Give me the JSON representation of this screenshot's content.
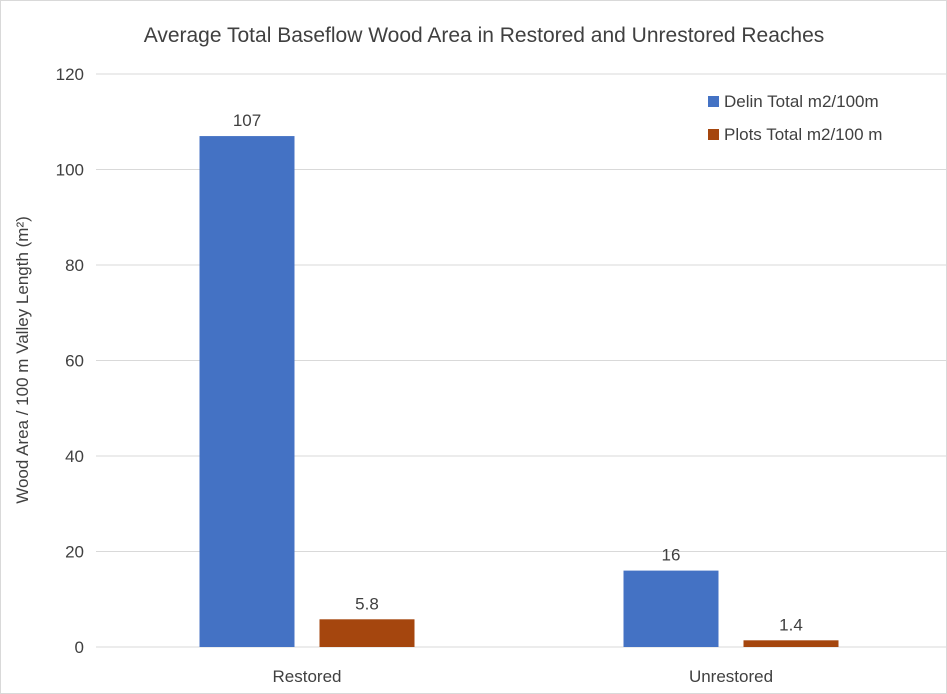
{
  "chart_data": {
    "type": "bar",
    "title": "Average Total Baseflow Wood Area in Restored and Unrestored Reaches",
    "xlabel": "",
    "ylabel": "Wood Area / 100 m Valley Length (m²)",
    "categories": [
      "Restored",
      "Unrestored"
    ],
    "series": [
      {
        "name": "Delin Total m2/100m",
        "values": [
          107,
          16
        ],
        "labels": [
          "107",
          "16"
        ],
        "color": "#4472c4"
      },
      {
        "name": "Plots Total m2/100 m",
        "values": [
          5.8,
          1.4
        ],
        "labels": [
          "5.8",
          "1.4"
        ],
        "color": "#a5460e"
      }
    ],
    "ylim": [
      0,
      120
    ],
    "yticks": [
      0,
      20,
      40,
      60,
      80,
      100,
      120
    ],
    "ytick_labels": [
      "0",
      "20",
      "40",
      "60",
      "80",
      "100",
      "120"
    ],
    "grid": true,
    "gridline_color": "#d9d9d9",
    "legend_position": "top-right"
  }
}
